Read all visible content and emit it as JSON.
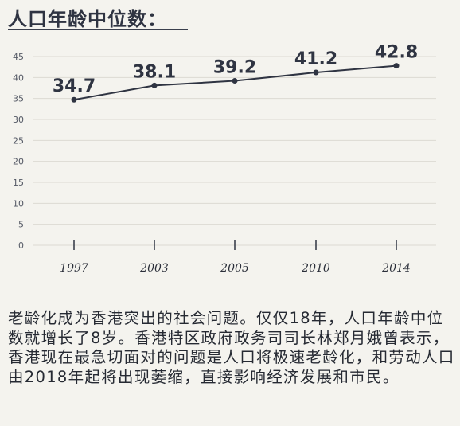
{
  "title": "人口年龄中位数：",
  "colors": {
    "line": "#2f3442",
    "grid": "#dcdad3",
    "background": "#f4f3ee"
  },
  "chart_data": {
    "type": "line",
    "title": "人口年龄中位数：",
    "xlabel": "",
    "ylabel": "",
    "categories": [
      "1997",
      "2003",
      "2005",
      "2010",
      "2014"
    ],
    "series": [
      {
        "values": [
          34.7,
          38.1,
          39.2,
          41.2,
          42.8
        ]
      }
    ],
    "data_labels": [
      "34.7",
      "38.1",
      "39.2",
      "41.2",
      "42.8"
    ],
    "y_ticks": [
      "0",
      "5",
      "10",
      "15",
      "20",
      "25",
      "30",
      "35",
      "40",
      "45"
    ],
    "ylim": [
      0,
      45
    ],
    "grid": true
  },
  "caption": "老龄化成为香港突出的社会问题。仅仅18年，人口年龄中位数就增长了8岁。香港特区政府政务司司长林郑月娥曾表示，香港现在最急切面对的问题是人口将极速老龄化，和劳动人口由2018年起将出现萎缩，直接影响经济发展和市民。"
}
